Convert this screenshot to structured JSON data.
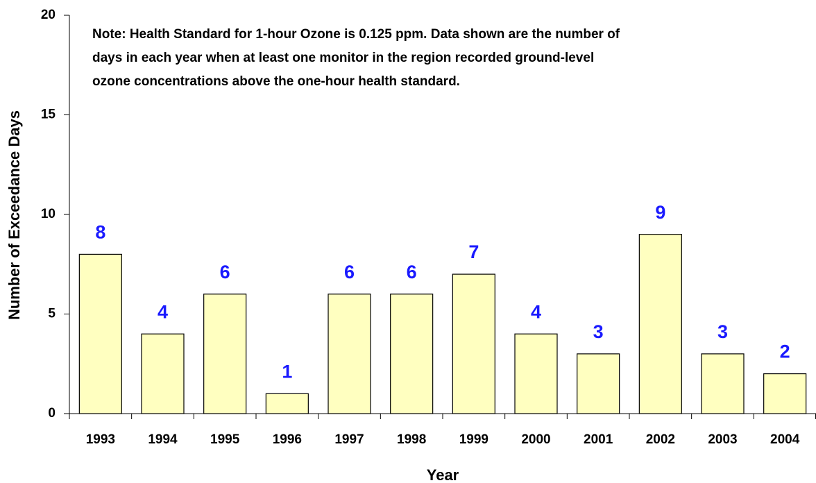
{
  "chart_data": {
    "type": "bar",
    "annotations": [
      "Note:  Health Standard for 1-hour Ozone is 0.125 ppm.  Data shown are the number of",
      "days in each year when at least one monitor in the region recorded ground-level",
      "ozone concentrations above the one-hour health standard."
    ],
    "xlabel": "Year",
    "ylabel": "Number of Exceedance Days",
    "categories": [
      "1993",
      "1994",
      "1995",
      "1996",
      "1997",
      "1998",
      "1999",
      "2000",
      "2001",
      "2002",
      "2003",
      "2004"
    ],
    "values": [
      8,
      4,
      6,
      1,
      6,
      6,
      7,
      4,
      3,
      9,
      3,
      2
    ],
    "color": "#ffffc0",
    "label_color": "#1a1aff",
    "ylim": [
      0,
      20
    ],
    "yticks": [
      0,
      5,
      10,
      15,
      20
    ],
    "grid": false
  }
}
